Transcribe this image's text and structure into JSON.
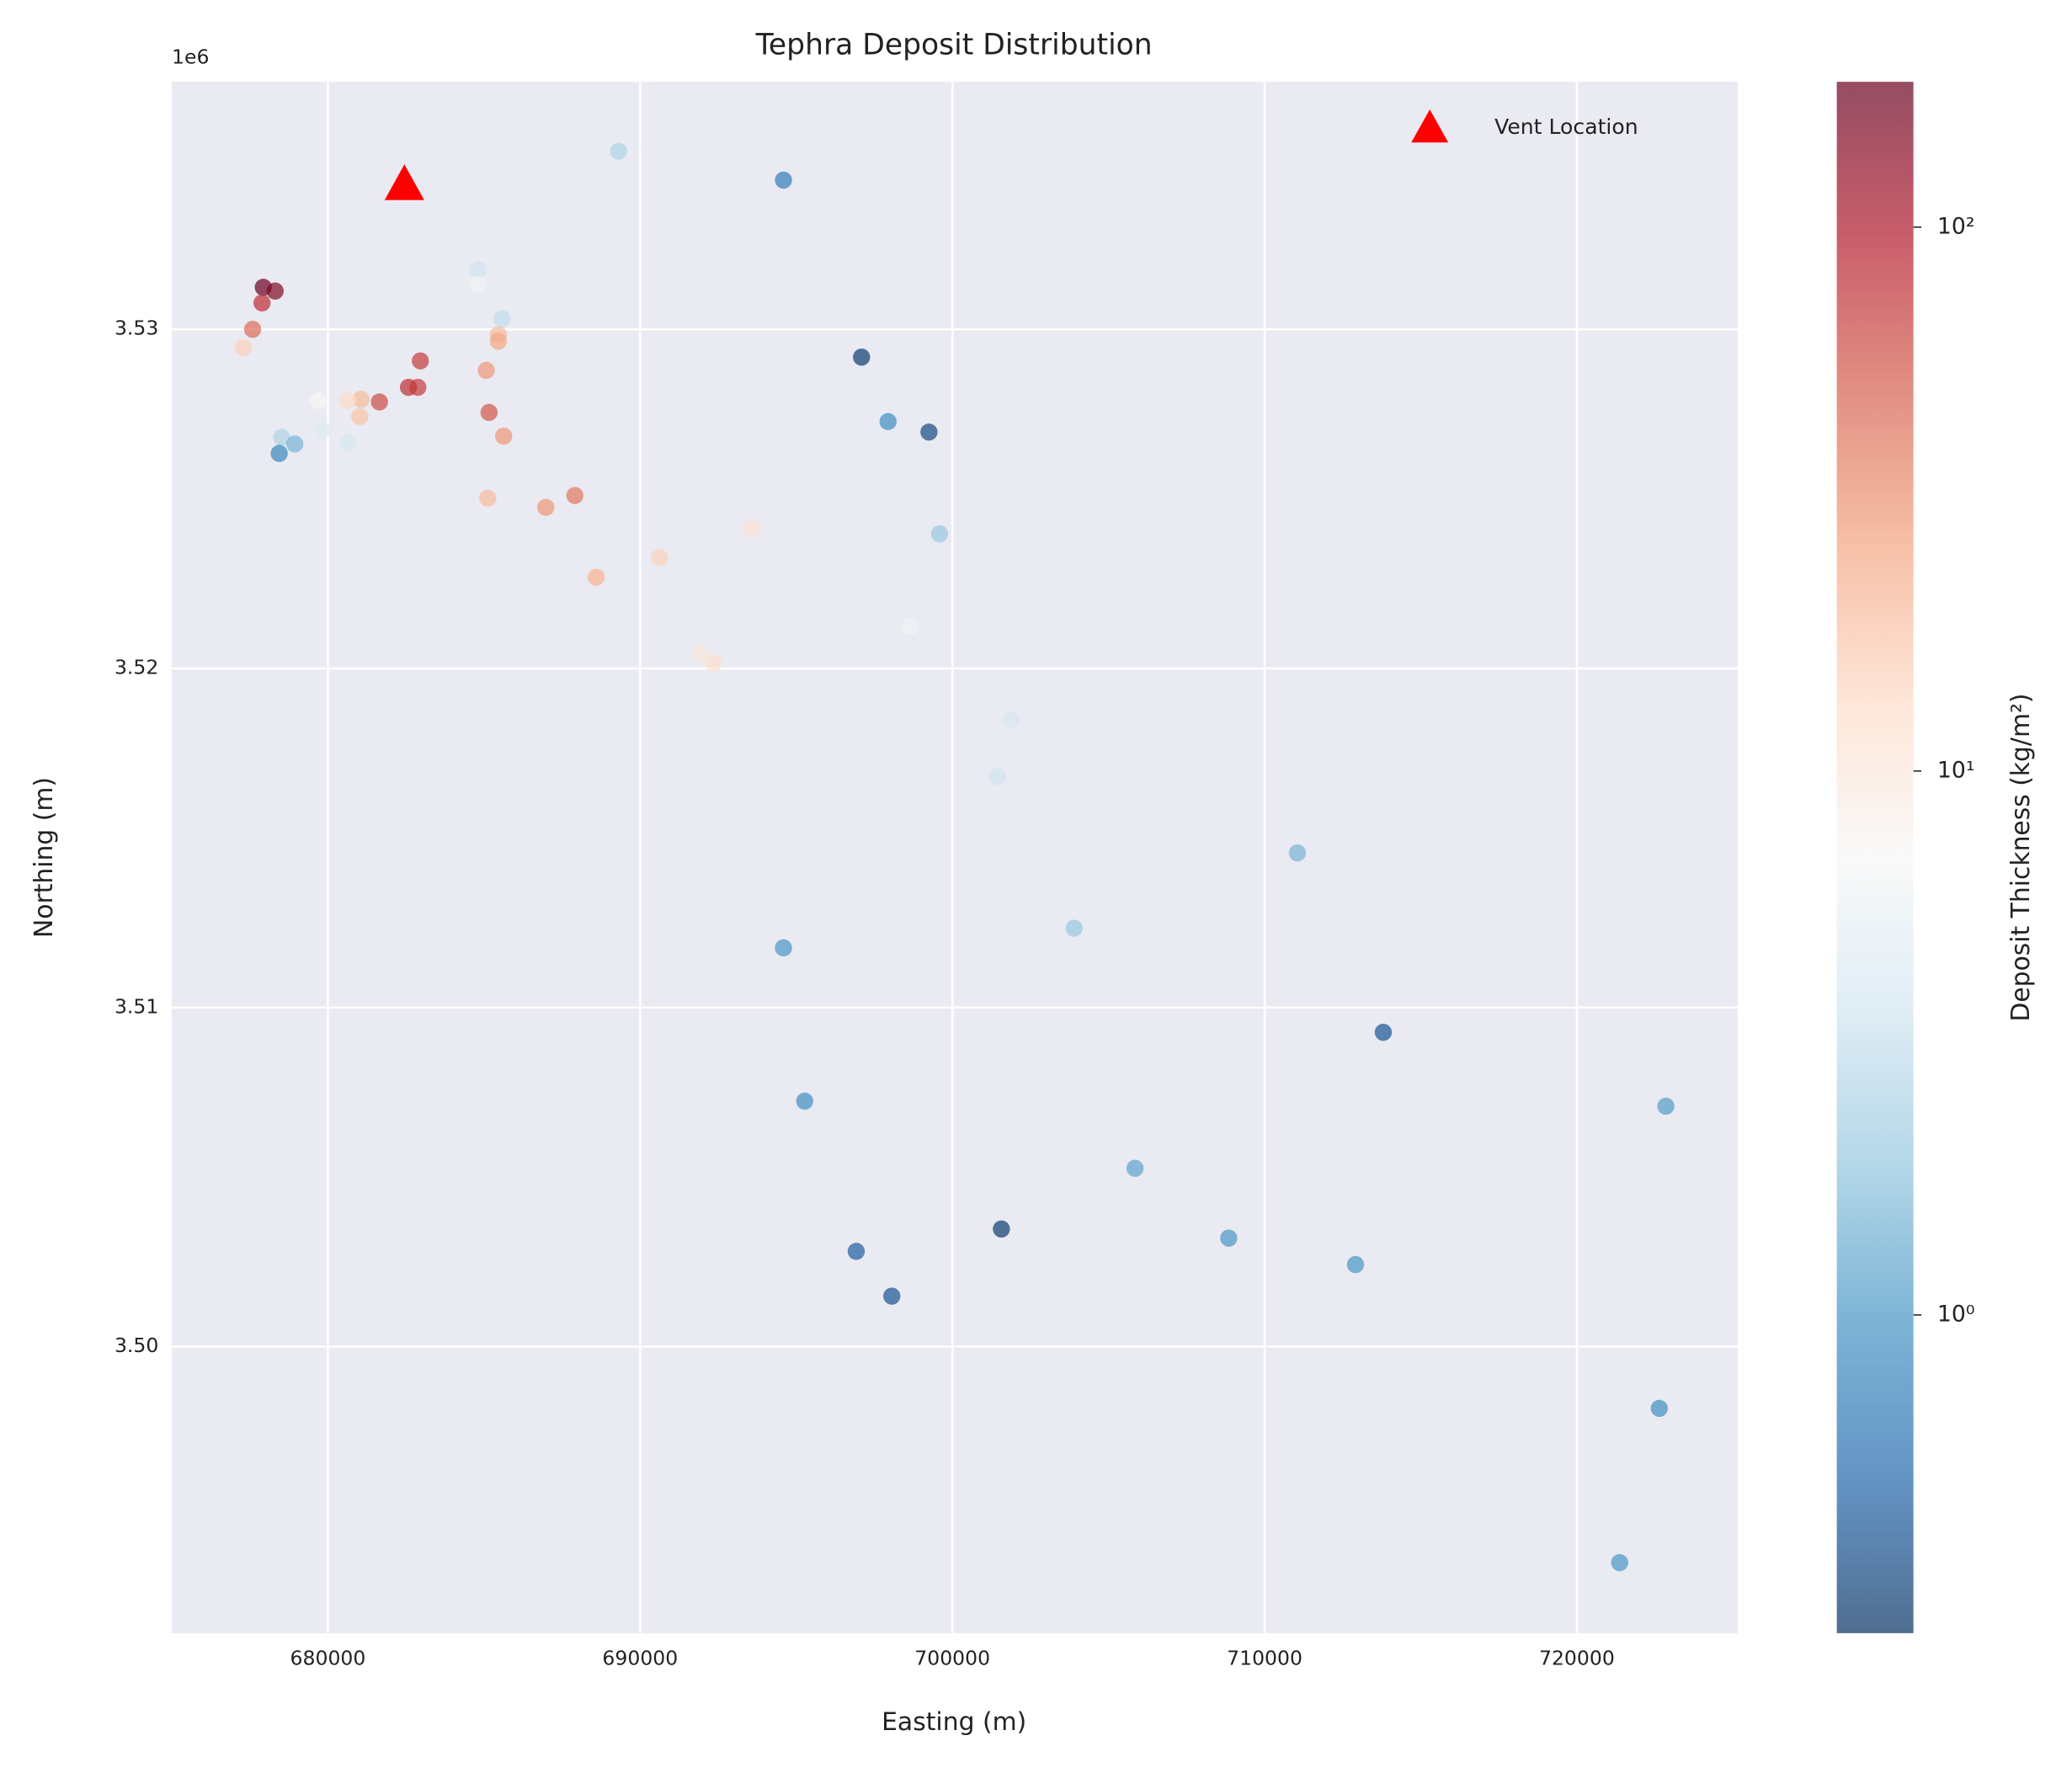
{
  "chart_data": {
    "type": "scatter",
    "title": "Tephra Deposit Distribution",
    "x_label": "Easting (m)",
    "y_label": "Northing (m)",
    "y_offset_label": "1e6",
    "colorbar_label": "Deposit Thickness (kg/m²)",
    "x": [
      689310,
      694590,
      677930,
      678310,
      677890,
      677590,
      677290,
      684820,
      684820,
      685580,
      685460,
      685460,
      682960,
      685070,
      682580,
      682880,
      681650,
      681060,
      680630,
      679700,
      681020,
      685160,
      685630,
      679830,
      678520,
      678940,
      678440,
      680630,
      697090,
      697940,
      699250,
      685120,
      686980,
      687910,
      688590,
      690620,
      693580,
      699590,
      698660,
      691930,
      692350,
      701870,
      701450,
      711050,
      703900,
      694590,
      713800,
      695270,
      722850,
      705850,
      701570,
      708850,
      696920,
      712910,
      698060,
      722640,
      721370
    ],
    "values": [
      3535250,
      3534400,
      3531240,
      3531130,
      3530780,
      3530000,
      3529460,
      3531750,
      3531320,
      3530310,
      3529840,
      3529650,
      3529070,
      3528790,
      3528290,
      3528290,
      3527860,
      3527940,
      3527900,
      3527900,
      3527430,
      3527550,
      3526850,
      3527000,
      3526810,
      3526620,
      3526340,
      3526650,
      3529180,
      3527280,
      3526970,
      3525020,
      3524750,
      3525100,
      3522690,
      3523270,
      3524130,
      3523970,
      3521250,
      3520430,
      3520160,
      3518490,
      3516810,
      3514560,
      3512340,
      3511760,
      3509270,
      3507240,
      3507090,
      3505260,
      3503470,
      3503200,
      3502810,
      3502420,
      3501490,
      3498180,
      3493630
    ],
    "thickness": [
      2.5,
      0.7,
      180,
      150,
      80,
      45,
      15,
      3.5,
      6,
      3,
      20,
      25,
      70,
      30,
      80,
      70,
      60,
      20,
      13,
      7,
      18,
      55,
      30,
      4.5,
      2.5,
      1.5,
      0.8,
      4,
      0.3,
      0.9,
      0.35,
      20,
      30,
      40,
      22,
      15,
      12,
      2,
      6,
      10,
      12,
      4,
      3.5,
      1.5,
      2,
      1,
      0.4,
      0.9,
      1.1,
      1.2,
      0.3,
      1,
      0.45,
      1,
      0.4,
      0.9,
      1
    ],
    "colormap": [
      "#053061",
      "#2166ac",
      "#4393c3",
      "#92c5de",
      "#d1e5f0",
      "#f7f7f7",
      "#fddbc7",
      "#f4a582",
      "#d6604d",
      "#b2182b",
      "#67001f"
    ],
    "alpha": 0.7,
    "clim": [
      0.26,
      185
    ],
    "clog": true,
    "cticks": [
      {
        "value": 1,
        "label": "10⁰"
      },
      {
        "value": 10,
        "label": "10¹"
      },
      {
        "value": 100,
        "label": "10²"
      }
    ],
    "vent": {
      "name": "Vent Location",
      "x": 682450,
      "y": 3534280,
      "color": "#ff0000"
    },
    "legend": "upper right",
    "grid": true,
    "xlim": [
      675000,
      725150
    ],
    "ylim": [
      3491550,
      3537300
    ],
    "xticks": [
      680000,
      690000,
      700000,
      710000,
      720000
    ],
    "yticks": [
      {
        "value": 3500000,
        "label": "3.50"
      },
      {
        "value": 3510000,
        "label": "3.51"
      },
      {
        "value": 3520000,
        "label": "3.52"
      },
      {
        "value": 3530000,
        "label": "3.53"
      }
    ]
  }
}
